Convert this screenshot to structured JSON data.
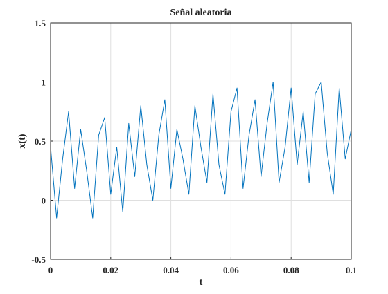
{
  "chart_data": {
    "type": "line",
    "title": "Señal aleatoria",
    "xlabel": "t",
    "ylabel": "x(t)",
    "xlim": [
      0,
      0.1
    ],
    "ylim": [
      -0.5,
      1.5
    ],
    "xticks": [
      0,
      0.02,
      0.04,
      0.06,
      0.08,
      0.1
    ],
    "xtick_labels": [
      "0",
      "0.02",
      "0.04",
      "0.06",
      "0.08",
      "0.1"
    ],
    "yticks": [
      -0.5,
      0,
      0.5,
      1,
      1.5
    ],
    "ytick_labels": [
      "-0.5",
      "0",
      "0.5",
      "1",
      "1.5"
    ],
    "grid": true,
    "series": [
      {
        "color": "#0072bd",
        "x": [
          0,
          0.002,
          0.004,
          0.006,
          0.008,
          0.01,
          0.012,
          0.014,
          0.016,
          0.018,
          0.02,
          0.022,
          0.024,
          0.026,
          0.028,
          0.03,
          0.032,
          0.034,
          0.036,
          0.038,
          0.04,
          0.042,
          0.044,
          0.046,
          0.048,
          0.05,
          0.052,
          0.054,
          0.056,
          0.058,
          0.06,
          0.062,
          0.064,
          0.066,
          0.068,
          0.07,
          0.072,
          0.074,
          0.076,
          0.078,
          0.08,
          0.082,
          0.084,
          0.086,
          0.088,
          0.09,
          0.092,
          0.094,
          0.096,
          0.098,
          0.1
        ],
        "y": [
          0.45,
          -0.15,
          0.35,
          0.75,
          0.1,
          0.6,
          0.25,
          -0.15,
          0.55,
          0.7,
          0.05,
          0.45,
          -0.1,
          0.65,
          0.2,
          0.8,
          0.3,
          0.0,
          0.55,
          0.85,
          0.1,
          0.6,
          0.35,
          0.05,
          0.8,
          0.45,
          0.15,
          0.9,
          0.3,
          0.05,
          0.75,
          0.95,
          0.1,
          0.55,
          0.85,
          0.2,
          0.65,
          1.0,
          0.15,
          0.45,
          0.95,
          0.3,
          0.75,
          0.15,
          0.9,
          1.0,
          0.4,
          0.05,
          0.95,
          0.35,
          0.6
        ]
      }
    ]
  }
}
